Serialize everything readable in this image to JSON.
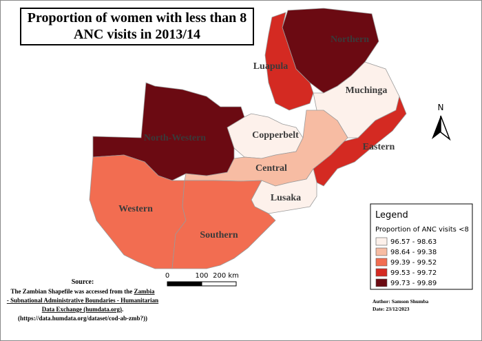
{
  "title": [
    "Proportion of women with less than 8",
    "ANC visits in 2013/14"
  ],
  "regions": [
    {
      "label": "Northern",
      "color": "#6b0a12"
    },
    {
      "label": "Luapula",
      "color": "#d42a22"
    },
    {
      "label": "Muchinga",
      "color": "#fdf1eb"
    },
    {
      "label": "Eastern",
      "color": "#d42a22"
    },
    {
      "label": "Copperbelt",
      "color": "#fdf1eb"
    },
    {
      "label": "Central",
      "color": "#f7bca3"
    },
    {
      "label": "Lusaka",
      "color": "#fdf1eb"
    },
    {
      "label": "North-Western",
      "color": "#6b0a12"
    },
    {
      "label": "Western",
      "color": "#f26d51"
    },
    {
      "label": "Southern",
      "color": "#f26d51"
    }
  ],
  "north_arrow": "N",
  "legend": {
    "title": "Legend",
    "subtitle": "Proportion of ANC visits <8",
    "classes": [
      {
        "label": "96.57 - 98.63",
        "color": "#fdf1eb"
      },
      {
        "label": "98.64 - 99.38",
        "color": "#f7bca3"
      },
      {
        "label": "99.39 - 99.52",
        "color": "#f26d51"
      },
      {
        "label": "99.53 - 99.72",
        "color": "#d42a22"
      },
      {
        "label": "99.73 - 99.89",
        "color": "#6b0a12"
      }
    ]
  },
  "scale_bar": [
    "0",
    "100",
    "200 km"
  ],
  "source": {
    "heading": "Source:",
    "lines": [
      [
        {
          "text": "The Zambian Shapefile was accessed from the ",
          "underline": false
        },
        {
          "text": "Zambia",
          "underline": true
        }
      ],
      [
        {
          "text": "- Subnational Administrative Boundaries - Humanitarian",
          "underline": true
        }
      ],
      [
        {
          "text": "Data Exchange (humdata.org)",
          "underline": true
        },
        {
          "text": ".",
          "underline": false
        }
      ],
      [
        {
          "text": "(https://data.humdata.org/dataset/cod-ab-zmb?))",
          "underline": false
        }
      ]
    ]
  },
  "author": "Author: Samson Shumba",
  "date": "Date: 23/12/2023"
}
